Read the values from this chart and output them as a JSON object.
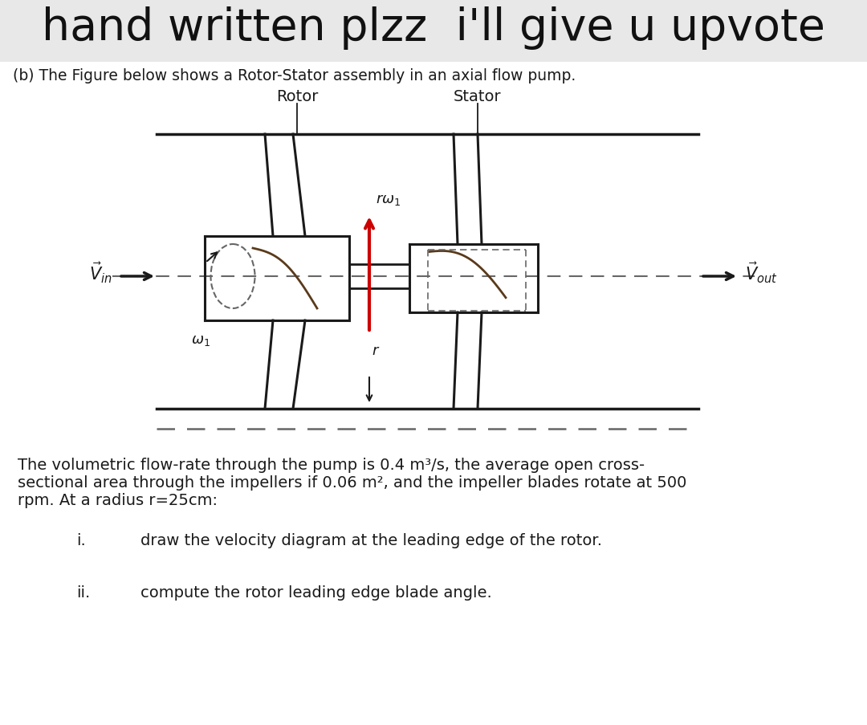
{
  "title": "hand written plzz  i'll give u upvote",
  "title_fontsize": 40,
  "bg_color": "#e8e8e8",
  "content_bg": "#ffffff",
  "subtitle": "(b) The Figure below shows a Rotor-Stator assembly in an axial flow pump.",
  "subtitle_fontsize": 13.5,
  "rotor_label": "Rotor",
  "stator_label": "Stator",
  "body_text_line1": "The volumetric flow-rate through the pump is 0.4 m³/s, the average open cross-",
  "body_text_line2": "sectional area through the impellers if 0.06 m², and the impeller blades rotate at 500",
  "body_text_line3": "rpm. At a radius r=25cm:",
  "item_i": "draw the velocity diagram at the leading edge of the rotor.",
  "item_ii": "compute the rotor leading edge blade angle.",
  "line_color": "#1a1a1a",
  "red_color": "#cc0000",
  "dash_color": "#666666",
  "blade_color": "#5a3a1a",
  "text_color": "#1a1a1a"
}
